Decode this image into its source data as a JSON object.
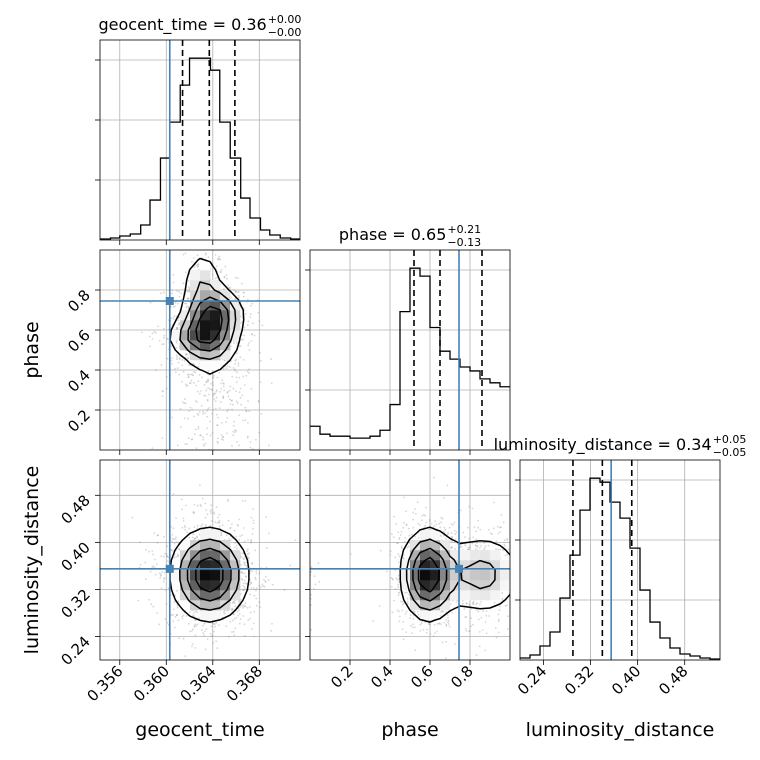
{
  "chart_data": {
    "type": "corner",
    "parameters": [
      "geocent_time",
      "phase",
      "luminosity_distance"
    ],
    "truths": [
      0.3603,
      0.745,
      0.355
    ],
    "colors": {
      "truth": "#4682b4",
      "hist": "#000000",
      "grid": "#b0b0b0",
      "scatter": "#8c8c8c"
    },
    "grid": true,
    "titles": [
      {
        "prefix": "geocent_time = 0.36",
        "sup": "+0.00",
        "sub": "−0.00"
      },
      {
        "prefix": "phase = 0.65",
        "sup": "+0.21",
        "sub": "−0.13"
      },
      {
        "prefix": "luminosity_distance = 0.34",
        "sup": "+0.05",
        "sub": "−0.05"
      }
    ],
    "axes": [
      {
        "name": "geocent_time",
        "range": [
          0.3543,
          0.3715
        ],
        "ticks": [
          0.356,
          0.36,
          0.364,
          0.368
        ],
        "tick_labels": [
          "0.356",
          "0.360",
          "0.364",
          "0.368"
        ]
      },
      {
        "name": "phase",
        "range": [
          0.0,
          1.0
        ],
        "ticks": [
          0.2,
          0.4,
          0.6,
          0.8
        ],
        "tick_labels": [
          "0.2",
          "0.4",
          "0.6",
          "0.8"
        ]
      },
      {
        "name": "luminosity_distance",
        "range": [
          0.2,
          0.54
        ],
        "ticks": [
          0.24,
          0.32,
          0.4,
          0.48
        ],
        "tick_labels": [
          "0.24",
          "0.32",
          "0.40",
          "0.48"
        ]
      }
    ],
    "histograms": [
      {
        "param": "geocent_time",
        "bin_edges": [
          0.3543,
          0.3552,
          0.356,
          0.3569,
          0.3578,
          0.3586,
          0.3595,
          0.3603,
          0.3612,
          0.362,
          0.3629,
          0.3638,
          0.3646,
          0.3655,
          0.3664,
          0.3672,
          0.3681,
          0.3689,
          0.3698,
          0.3707,
          0.3715
        ],
        "counts": [
          1,
          2,
          4,
          6,
          15,
          40,
          82,
          118,
          155,
          182,
          182,
          170,
          118,
          82,
          42,
          22,
          10,
          5,
          2,
          1
        ],
        "quantiles": [
          0.3614,
          0.3637,
          0.3659
        ]
      },
      {
        "param": "phase",
        "bin_edges": [
          0.0,
          0.05,
          0.1,
          0.15,
          0.2,
          0.25,
          0.3,
          0.35,
          0.4,
          0.45,
          0.5,
          0.55,
          0.6,
          0.65,
          0.7,
          0.75,
          0.8,
          0.85,
          0.9,
          0.95,
          1.0
        ],
        "counts": [
          12,
          8,
          7,
          7,
          6,
          6,
          7,
          10,
          23,
          70,
          92,
          88,
          62,
          50,
          46,
          42,
          40,
          36,
          34,
          32
        ],
        "quantiles": [
          0.52,
          0.65,
          0.86
        ]
      },
      {
        "param": "luminosity_distance",
        "bin_edges": [
          0.2,
          0.217,
          0.234,
          0.251,
          0.268,
          0.285,
          0.302,
          0.319,
          0.336,
          0.353,
          0.37,
          0.387,
          0.404,
          0.421,
          0.438,
          0.455,
          0.472,
          0.489,
          0.506,
          0.523,
          0.54
        ],
        "counts": [
          2,
          5,
          14,
          28,
          62,
          105,
          150,
          182,
          178,
          158,
          142,
          112,
          70,
          38,
          22,
          12,
          6,
          4,
          2,
          1
        ],
        "quantiles": [
          0.29,
          0.34,
          0.39
        ]
      }
    ],
    "density_2d": [
      {
        "x_param": "geocent_time",
        "y_param": "phase",
        "blobs": [
          {
            "cx": 0.3637,
            "cy": 0.6,
            "sx": 0.0014,
            "sy": 0.1,
            "w": 1.0
          },
          {
            "cx": 0.3644,
            "cy": 0.7,
            "sx": 0.0012,
            "sy": 0.06,
            "w": 0.45
          },
          {
            "cx": 0.3631,
            "cy": 0.85,
            "sx": 0.001,
            "sy": 0.09,
            "w": 0.35
          },
          {
            "cx": 0.3622,
            "cy": 0.56,
            "sx": 0.0014,
            "sy": 0.05,
            "w": 0.3
          },
          {
            "cx": 0.364,
            "cy": 0.2,
            "sx": 0.0018,
            "sy": 0.15,
            "w": 0.15
          }
        ]
      },
      {
        "x_param": "geocent_time",
        "y_param": "luminosity_distance",
        "blobs": [
          {
            "cx": 0.3637,
            "cy": 0.345,
            "sx": 0.0017,
            "sy": 0.04,
            "w": 1.0
          }
        ]
      },
      {
        "x_param": "phase",
        "y_param": "luminosity_distance",
        "blobs": [
          {
            "cx": 0.59,
            "cy": 0.345,
            "sx": 0.07,
            "sy": 0.04,
            "w": 1.0
          },
          {
            "cx": 0.86,
            "cy": 0.345,
            "sx": 0.12,
            "sy": 0.04,
            "w": 0.4
          },
          {
            "cx": 0.02,
            "cy": 0.345,
            "sx": 0.02,
            "sy": 0.03,
            "w": 0.12
          }
        ]
      }
    ]
  }
}
